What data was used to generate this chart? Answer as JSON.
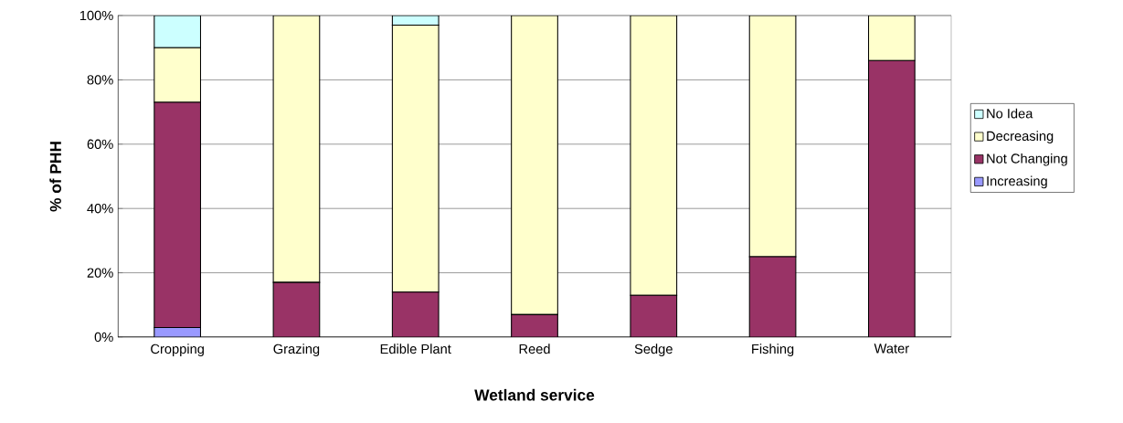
{
  "chart_data": {
    "type": "bar",
    "stacked": true,
    "xlabel": "Wetland service",
    "ylabel": "% of PHH",
    "categories": [
      "Cropping",
      "Grazing",
      "Edible Plant",
      "Reed",
      "Sedge",
      "Fishing",
      "Water"
    ],
    "series": [
      {
        "name": "Increasing",
        "color": "#9999ff",
        "values": [
          3,
          0,
          0,
          0,
          0,
          0,
          0
        ]
      },
      {
        "name": "Not Changing",
        "color": "#993366",
        "values": [
          70,
          17,
          14,
          7,
          13,
          25,
          86
        ]
      },
      {
        "name": "Decreasing",
        "color": "#ffffcc",
        "values": [
          17,
          83,
          83,
          93,
          87,
          75,
          14
        ]
      },
      {
        "name": "No Idea",
        "color": "#ccffff",
        "values": [
          10,
          0,
          3,
          0,
          0,
          0,
          0
        ]
      }
    ],
    "ylim": [
      0,
      100
    ],
    "yticks": [
      {
        "value": 0,
        "label": "0%"
      },
      {
        "value": 20,
        "label": "20%"
      },
      {
        "value": 40,
        "label": "40%"
      },
      {
        "value": 60,
        "label": "60%"
      },
      {
        "value": 80,
        "label": "80%"
      },
      {
        "value": 100,
        "label": "100%"
      }
    ],
    "grid": "y",
    "legend": "right"
  }
}
